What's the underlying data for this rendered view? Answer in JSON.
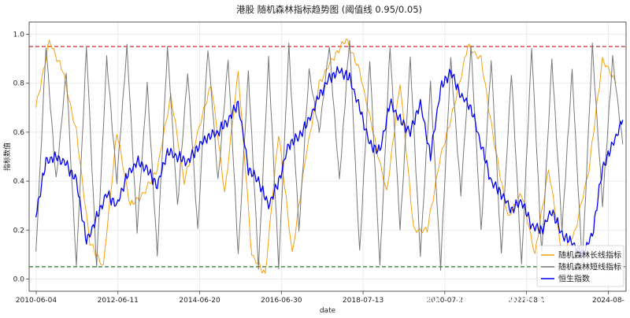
{
  "chart_data": {
    "type": "line",
    "title": "港股 随机森林指标趋势图 (阈值线 0.95/0.05)",
    "xlabel": "date",
    "ylabel": "指标数值",
    "xlim": [
      "2010-04-01",
      "2024-12-31"
    ],
    "ylim": [
      -0.05,
      1.05
    ],
    "x_ticks": [
      "2010-06-04",
      "2012-06-11",
      "2014-06-20",
      "2016-06-30",
      "2018-07-13",
      "2020-07-2",
      "2022-08-1",
      "2024-08-"
    ],
    "y_ticks": [
      "0.0",
      "0.2",
      "0.4",
      "0.6",
      "0.8",
      "1.0"
    ],
    "grid": true,
    "legend_position": "bottom-right",
    "threshold_lines": [
      {
        "value": 0.95,
        "color": "#d62728",
        "style": "dashed"
      },
      {
        "value": 0.05,
        "color": "#1a7f1a",
        "style": "dashed"
      }
    ],
    "series": [
      {
        "name": "随机森林长线指标",
        "color": "#f5a00f",
        "x": [
          "2010-06",
          "2010-10",
          "2011-02",
          "2011-06",
          "2011-10",
          "2012-02",
          "2012-06",
          "2012-10",
          "2013-02",
          "2013-06",
          "2013-10",
          "2014-02",
          "2014-06",
          "2014-10",
          "2015-02",
          "2015-06",
          "2015-10",
          "2016-02",
          "2016-06",
          "2016-10",
          "2017-02",
          "2017-06",
          "2017-10",
          "2018-02",
          "2018-06",
          "2018-10",
          "2019-02",
          "2019-06",
          "2019-10",
          "2020-02",
          "2020-06",
          "2020-10",
          "2021-02",
          "2021-06",
          "2021-10",
          "2022-02",
          "2022-06",
          "2022-10",
          "2023-02",
          "2023-06",
          "2023-10",
          "2024-02",
          "2024-06",
          "2024-10"
        ],
        "values": [
          0.7,
          0.97,
          0.85,
          0.6,
          0.15,
          0.05,
          0.6,
          0.3,
          0.35,
          0.45,
          0.75,
          0.4,
          0.6,
          0.8,
          0.35,
          0.85,
          0.1,
          0.02,
          0.6,
          0.1,
          0.5,
          0.8,
          0.9,
          0.98,
          0.85,
          0.6,
          0.35,
          0.8,
          0.2,
          0.2,
          0.5,
          0.7,
          0.95,
          0.9,
          0.55,
          0.25,
          0.35,
          0.1,
          0.45,
          0.1,
          0.2,
          0.45,
          0.9,
          0.8
        ]
      },
      {
        "name": "随机森林短线指标",
        "color": "#777777",
        "x": [
          "2010-06",
          "2010-09",
          "2010-12",
          "2011-03",
          "2011-06",
          "2011-09",
          "2011-12",
          "2012-03",
          "2012-06",
          "2012-09",
          "2012-12",
          "2013-03",
          "2013-06",
          "2013-09",
          "2013-12",
          "2014-03",
          "2014-06",
          "2014-09",
          "2014-12",
          "2015-03",
          "2015-06",
          "2015-09",
          "2015-12",
          "2016-03",
          "2016-06",
          "2016-09",
          "2016-12",
          "2017-03",
          "2017-06",
          "2017-09",
          "2017-12",
          "2018-03",
          "2018-06",
          "2018-09",
          "2018-12",
          "2019-03",
          "2019-06",
          "2019-09",
          "2019-12",
          "2020-03",
          "2020-06",
          "2020-09",
          "2020-12",
          "2021-03",
          "2021-06",
          "2021-09",
          "2021-12",
          "2022-03",
          "2022-06",
          "2022-09",
          "2022-12",
          "2023-03",
          "2023-06",
          "2023-09",
          "2023-12",
          "2024-03",
          "2024-06",
          "2024-09",
          "2024-12"
        ],
        "values": [
          0.1,
          0.95,
          0.4,
          0.85,
          0.05,
          0.95,
          0.05,
          0.9,
          0.4,
          0.95,
          0.2,
          0.8,
          0.1,
          0.95,
          0.3,
          0.85,
          0.2,
          0.95,
          0.4,
          0.9,
          0.1,
          0.85,
          0.05,
          0.9,
          0.05,
          0.95,
          0.2,
          0.85,
          0.6,
          0.95,
          0.4,
          0.98,
          0.1,
          0.9,
          0.05,
          0.95,
          0.2,
          0.9,
          0.1,
          0.8,
          0.05,
          0.9,
          0.35,
          0.95,
          0.2,
          0.9,
          0.1,
          0.85,
          0.05,
          0.95,
          0.1,
          0.9,
          0.2,
          0.85,
          0.05,
          0.95,
          0.3,
          0.9,
          0.55
        ]
      },
      {
        "name": "恒生指数",
        "color": "#0000ee",
        "x": [
          "2010-06",
          "2010-09",
          "2010-12",
          "2011-03",
          "2011-06",
          "2011-09",
          "2011-12",
          "2012-03",
          "2012-06",
          "2012-09",
          "2012-12",
          "2013-03",
          "2013-06",
          "2013-09",
          "2013-12",
          "2014-03",
          "2014-06",
          "2014-09",
          "2014-12",
          "2015-03",
          "2015-06",
          "2015-09",
          "2015-12",
          "2016-03",
          "2016-06",
          "2016-09",
          "2016-12",
          "2017-03",
          "2017-06",
          "2017-09",
          "2017-12",
          "2018-03",
          "2018-06",
          "2018-09",
          "2018-12",
          "2019-03",
          "2019-06",
          "2019-09",
          "2019-12",
          "2020-03",
          "2020-06",
          "2020-09",
          "2020-12",
          "2021-03",
          "2021-06",
          "2021-09",
          "2021-12",
          "2022-03",
          "2022-06",
          "2022-09",
          "2022-12",
          "2023-03",
          "2023-06",
          "2023-09",
          "2023-12",
          "2024-03",
          "2024-06",
          "2024-09",
          "2024-12"
        ],
        "values": [
          0.26,
          0.48,
          0.5,
          0.47,
          0.4,
          0.15,
          0.25,
          0.35,
          0.3,
          0.42,
          0.48,
          0.45,
          0.38,
          0.52,
          0.5,
          0.48,
          0.54,
          0.58,
          0.6,
          0.65,
          0.72,
          0.45,
          0.4,
          0.3,
          0.4,
          0.55,
          0.58,
          0.65,
          0.75,
          0.82,
          0.85,
          0.82,
          0.7,
          0.55,
          0.52,
          0.72,
          0.65,
          0.6,
          0.72,
          0.5,
          0.78,
          0.85,
          0.75,
          0.7,
          0.55,
          0.4,
          0.35,
          0.28,
          0.32,
          0.22,
          0.2,
          0.28,
          0.18,
          0.15,
          0.1,
          0.18,
          0.45,
          0.55,
          0.65
        ]
      }
    ]
  },
  "watermark": "雪球：律动周期研究所"
}
